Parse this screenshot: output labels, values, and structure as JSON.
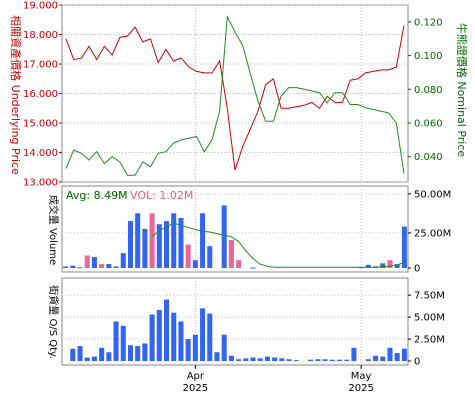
{
  "colors": {
    "price_line": "#cc0000",
    "nominal_line": "#228b22",
    "volume_bar": "#3366ee",
    "volume_bar_alt": "#ee6699",
    "volume_avg_line": "#228b22",
    "grid": "#c0c0c0",
    "label_red": "#cc0000",
    "label_green": "#006600",
    "label_pink": "#e06080"
  },
  "chart_data": [
    {
      "type": "line",
      "ylabel": "相關資產價格 Underlying Price",
      "y2label": "牛熊證價格 Nominal Price",
      "ylim": [
        13.0,
        19.0
      ],
      "y2lim": [
        0.025,
        0.13
      ],
      "y_ticks": [
        "13.000",
        "14.000",
        "15.000",
        "16.000",
        "17.000",
        "18.000",
        "19.000"
      ],
      "y2_ticks": [
        "0.040",
        "0.060",
        "0.080",
        "0.100",
        "0.120"
      ],
      "grid": true,
      "series": [
        {
          "name": "Underlying Price",
          "axis": "left",
          "values": [
            17.85,
            17.15,
            17.2,
            17.6,
            17.15,
            17.6,
            17.3,
            17.9,
            17.95,
            18.25,
            17.75,
            17.85,
            17.05,
            17.5,
            17.1,
            17.2,
            16.9,
            16.75,
            16.7,
            16.7,
            17.1,
            15.5,
            13.4,
            14.2,
            14.8,
            15.4,
            16.3,
            16.5,
            15.5,
            15.5,
            15.55,
            15.6,
            15.7,
            15.5,
            15.9,
            15.7,
            15.7,
            16.45,
            16.5,
            16.7,
            16.75,
            16.8,
            16.8,
            16.9,
            18.3
          ]
        },
        {
          "name": "Nominal Price",
          "axis": "right",
          "values": [
            0.033,
            0.044,
            0.042,
            0.038,
            0.043,
            0.036,
            0.04,
            0.037,
            0.029,
            0.029,
            0.037,
            0.034,
            0.042,
            0.043,
            0.048,
            0.05,
            0.051,
            0.052,
            0.043,
            0.05,
            0.067,
            0.123,
            0.114,
            0.106,
            0.089,
            0.073,
            0.061,
            0.061,
            0.076,
            0.081,
            0.081,
            0.08,
            0.079,
            0.078,
            0.072,
            0.078,
            0.078,
            0.071,
            0.071,
            0.069,
            0.068,
            0.067,
            0.066,
            0.06,
            0.03
          ]
        }
      ]
    },
    {
      "type": "bar",
      "ylabel": "成交量 Volume",
      "ylim": [
        0,
        55000000
      ],
      "y_ticks": [
        "0",
        "25.00M",
        "50.00M"
      ],
      "legend": {
        "avg_label": "Avg: 8.49M",
        "vol_label": "VOL: 1.02M"
      },
      "values": [
        1.0,
        1.5,
        0.5,
        8.0,
        7.0,
        2.5,
        2.5,
        1.0,
        9.5,
        30.0,
        35.0,
        25.0,
        35.0,
        28.0,
        30.0,
        35.0,
        32.0,
        15.0,
        5.0,
        35.0,
        14.0,
        0.0,
        40.0,
        18.0,
        5.0,
        0.0,
        0.3,
        0.0,
        0.0,
        0.0,
        0.0,
        0.0,
        0.0,
        0.0,
        0.0,
        0.0,
        0.0,
        0.0,
        0.0,
        0.0,
        0.0,
        0.5,
        2.0,
        1.0,
        3.0,
        5.0,
        2.5,
        26.5
      ],
      "highlight": [
        0,
        0,
        0,
        1,
        0,
        1,
        0,
        0,
        0,
        0,
        0,
        0,
        1,
        0,
        0,
        0,
        0,
        1,
        0,
        0,
        0,
        0,
        0,
        1,
        1,
        0,
        0,
        0,
        0,
        0,
        0,
        0,
        0,
        0,
        0,
        0,
        0,
        0,
        0,
        0,
        0,
        0,
        0,
        0,
        0,
        1,
        0,
        0
      ],
      "avg_values": [
        null,
        null,
        null,
        null,
        null,
        null,
        null,
        null,
        null,
        null,
        null,
        null,
        20.0,
        24.0,
        26.0,
        29.0,
        27.0,
        26.0,
        24.5,
        23.5,
        23.0,
        22.0,
        21.0,
        20.0,
        17.0,
        11.0,
        6.0,
        2.5,
        1.0,
        0.5,
        0.5,
        0.5,
        0.5,
        0.5,
        0.5,
        0.5,
        0.5,
        0.5,
        0.5,
        0.5,
        0.5,
        0.5,
        0.5,
        0.6,
        0.8,
        1.2,
        2.0,
        3.5
      ]
    },
    {
      "type": "bar",
      "ylabel": "街貨量 O/S Qty.",
      "ylim": [
        0,
        9000000
      ],
      "y_ticks": [
        "0",
        "2.50M",
        "5.00M",
        "7.50M"
      ],
      "values": [
        0,
        1.4,
        1.7,
        0.4,
        0.5,
        1.5,
        1.0,
        4.5,
        4.0,
        1.8,
        1.7,
        2.0,
        5.3,
        5.8,
        7.0,
        5.5,
        4.5,
        2.5,
        3.0,
        6.0,
        5.4,
        1.0,
        3.0,
        0.6,
        0.2,
        0.3,
        0.4,
        0.3,
        0.5,
        0.4,
        0.3,
        0.2,
        0.1,
        0,
        0.15,
        0.2,
        0.2,
        0.15,
        0.15,
        0.15,
        1.5,
        0,
        0.2,
        0.6,
        0.5,
        1.5,
        0.9,
        1.4
      ],
      "x_ticks": [
        {
          "label": "Apr",
          "sub": "2025",
          "index": 18
        },
        {
          "label": "May",
          "sub": "2025",
          "index": 41
        }
      ]
    }
  ]
}
